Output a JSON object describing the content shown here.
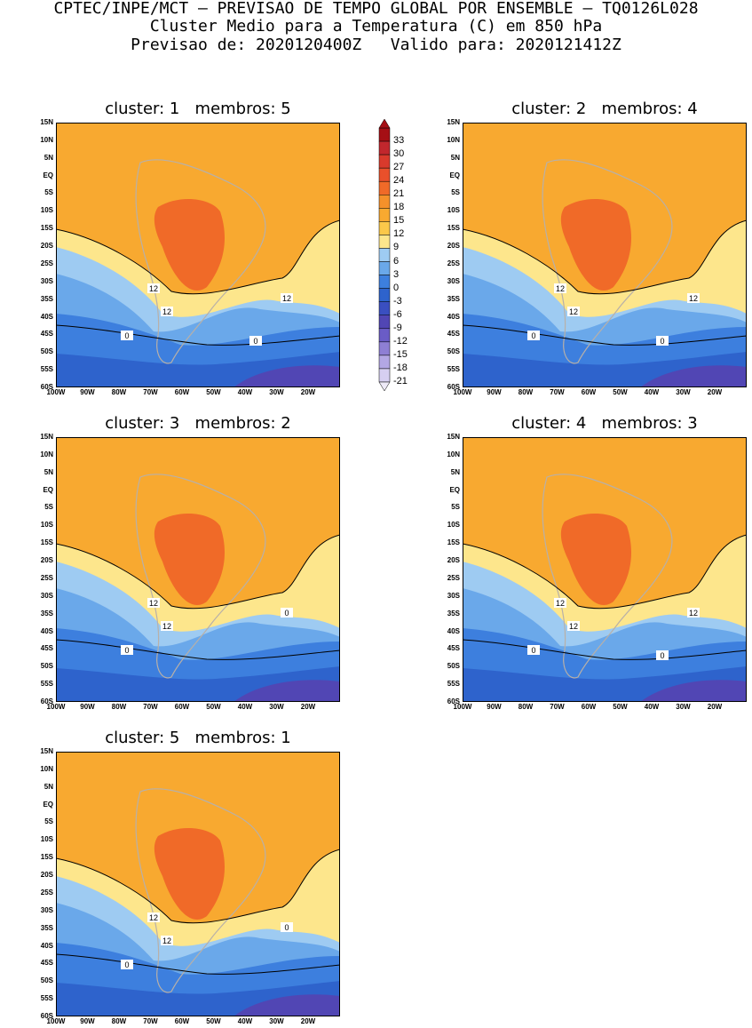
{
  "header": {
    "line1": "CPTEC/INPE/MCT — PREVISAO DE TEMPO GLOBAL POR ENSEMBLE — TQ0126L028",
    "line2": "Cluster Medio para a Temperatura (C) em 850 hPa",
    "line3": "Previsao de: 2020120400Z   Valido para: 2020121412Z"
  },
  "lat_labels": [
    "15N",
    "10N",
    "5N",
    "EQ",
    "5S",
    "10S",
    "15S",
    "20S",
    "25S",
    "30S",
    "35S",
    "40S",
    "45S",
    "50S",
    "55S",
    "60S"
  ],
  "lon_labels": [
    "100W",
    "90W",
    "80W",
    "70W",
    "60W",
    "50W",
    "40W",
    "30W",
    "20W"
  ],
  "colorbar": {
    "labels": [
      "33",
      "30",
      "27",
      "24",
      "21",
      "18",
      "15",
      "12",
      "9",
      "6",
      "3",
      "0",
      "-3",
      "-6",
      "-9",
      "-12",
      "-15",
      "-18",
      "-21"
    ],
    "colors": [
      "#a50f15",
      "#c1272d",
      "#d93a2c",
      "#e9502b",
      "#f06a28",
      "#f5912a",
      "#f8a930",
      "#fbc84a",
      "#fde68c",
      "#9ecbf2",
      "#6aa8ea",
      "#3d7fde",
      "#2e63cc",
      "#3a4fc0",
      "#5146b4",
      "#6a5cc6",
      "#8e7fd4",
      "#b3a7e4",
      "#d6cff1"
    ]
  },
  "panels": [
    {
      "title": "cluster: 1   membros: 5",
      "labels": [
        "12",
        "12",
        "12",
        "0",
        "0"
      ]
    },
    {
      "title": "cluster: 2   membros: 4",
      "labels": [
        "12",
        "12",
        "12",
        "0",
        "0"
      ]
    },
    {
      "title": "cluster: 3   membros: 2",
      "labels": [
        "12",
        "12",
        "0",
        "0"
      ]
    },
    {
      "title": "cluster: 4   membros: 3",
      "labels": [
        "12",
        "12",
        "12",
        "0",
        "0"
      ]
    },
    {
      "title": "cluster: 5   membros: 1",
      "labels": [
        "12",
        "12",
        "0",
        "0"
      ]
    }
  ]
}
